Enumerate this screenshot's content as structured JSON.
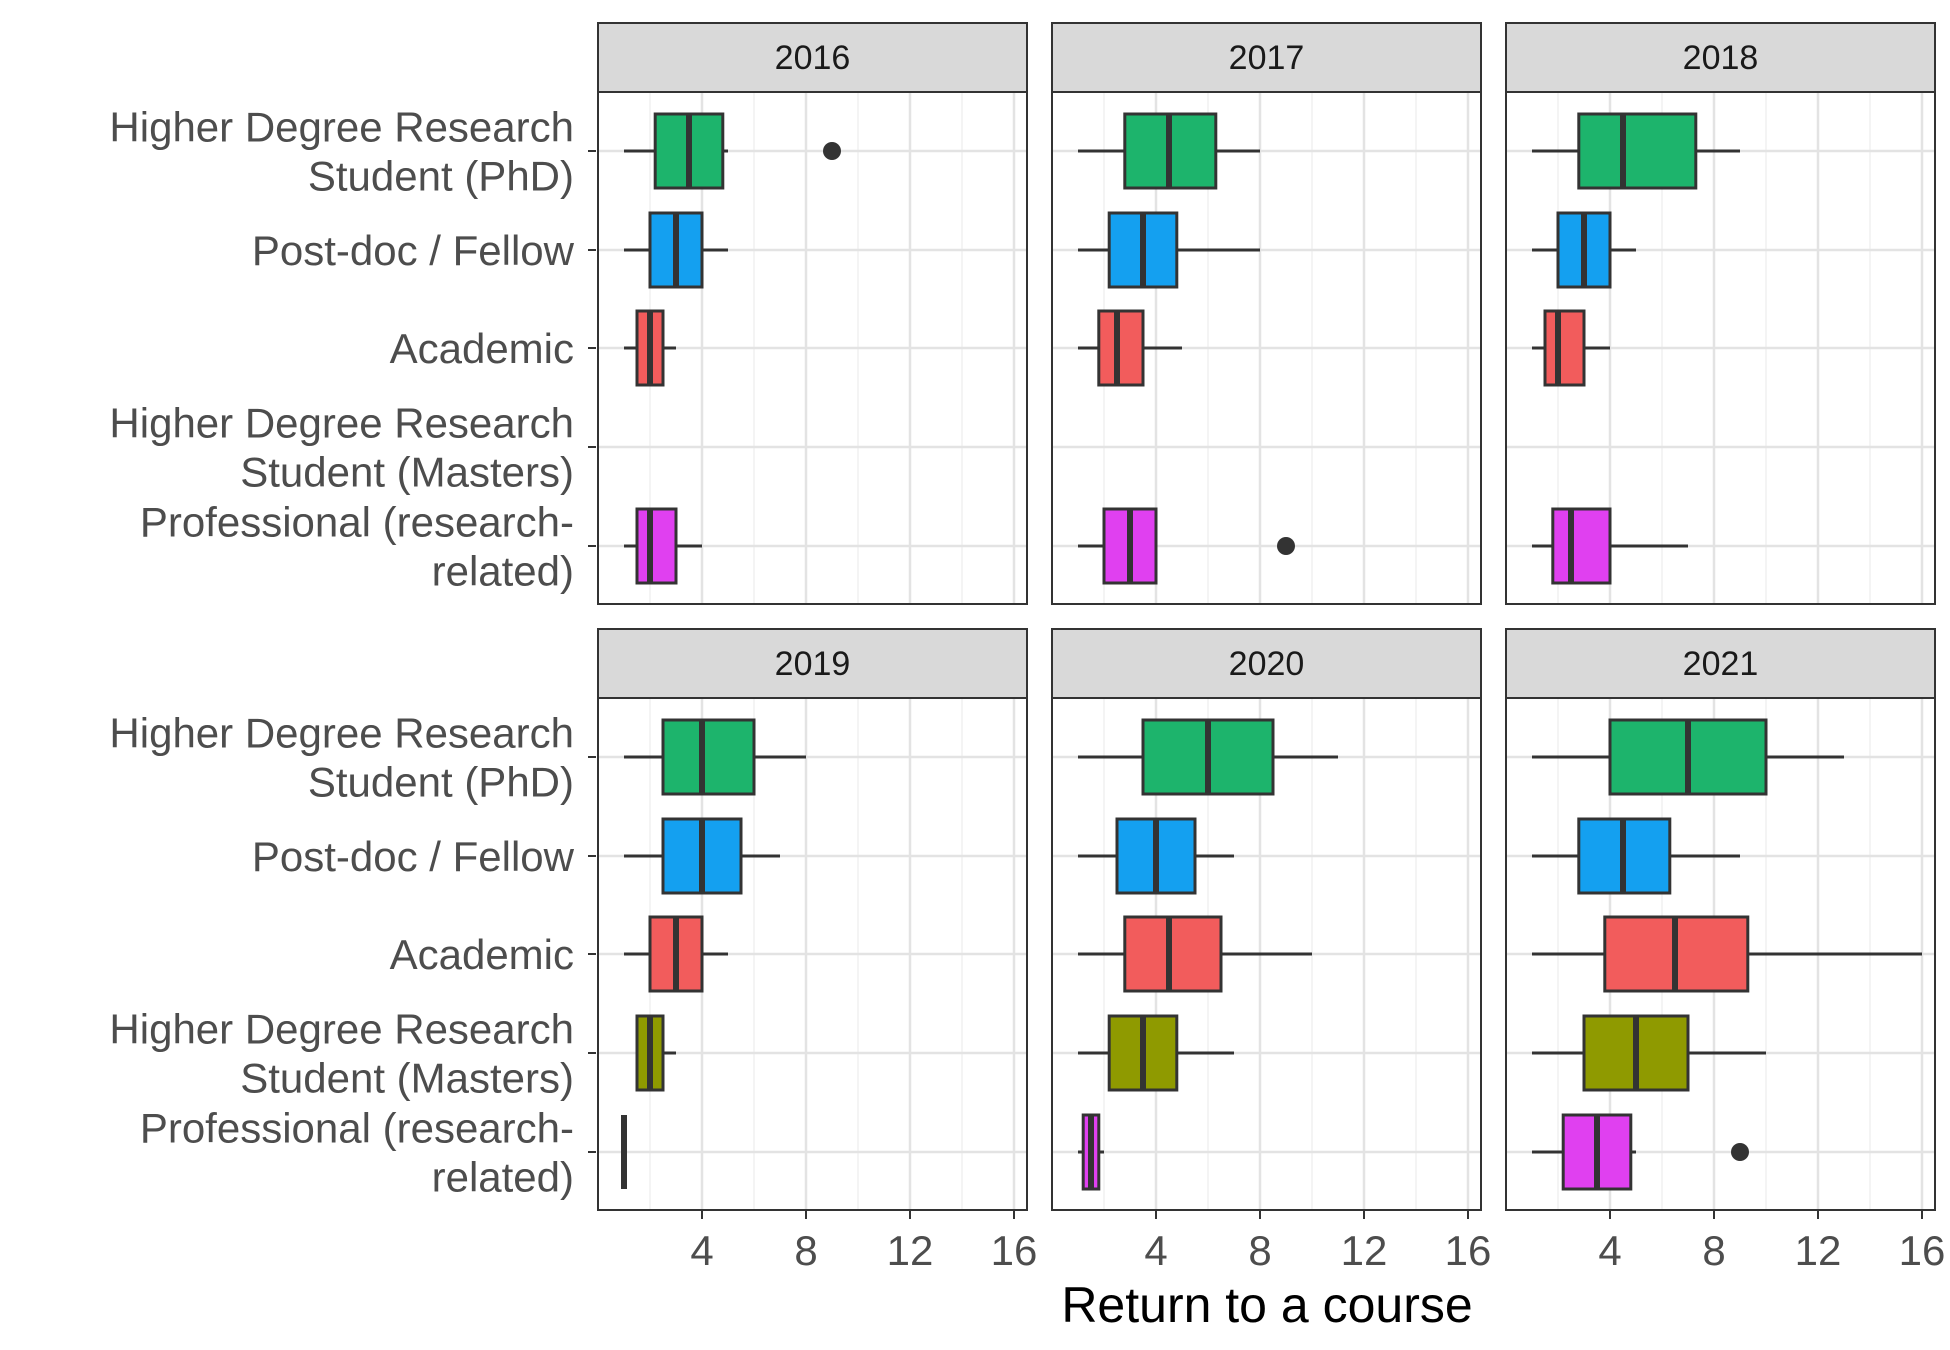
{
  "chart_data": {
    "type": "boxplot",
    "xlabel": "Return to a course",
    "ylabel": "",
    "xlim": [
      0,
      16.5
    ],
    "x_ticks": [
      4,
      8,
      12,
      16
    ],
    "x_tick_labels": [
      "4",
      "8",
      "12",
      "16"
    ],
    "grid": true,
    "categories": [
      "Higher Degree Research\nStudent (PhD)",
      "Post-doc / Fellow",
      "Academic",
      "Higher Degree Research\nStudent (Masters)",
      "Professional (research-\nrelated)"
    ],
    "colors": {
      "Higher Degree Research\nStudent (PhD)": "#1db46c",
      "Post-doc / Fellow": "#14a0f0",
      "Academic": "#f25c5c",
      "Higher Degree Research\nStudent (Masters)": "#8f9a00",
      "Professional (research-\nrelated)": "#e040f0"
    },
    "panels": [
      {
        "label": "2016",
        "boxes": [
          {
            "category": 0,
            "whisker_low": 1,
            "q1": 2.2,
            "median": 3.5,
            "q3": 4.8,
            "whisker_high": 5,
            "outliers": [
              9
            ]
          },
          {
            "category": 1,
            "whisker_low": 1,
            "q1": 2,
            "median": 3,
            "q3": 4,
            "whisker_high": 5,
            "outliers": []
          },
          {
            "category": 2,
            "whisker_low": 1,
            "q1": 1.5,
            "median": 2,
            "q3": 2.5,
            "whisker_high": 3,
            "outliers": []
          },
          {
            "category": 4,
            "whisker_low": 1,
            "q1": 1.5,
            "median": 2,
            "q3": 3,
            "whisker_high": 4,
            "outliers": []
          }
        ]
      },
      {
        "label": "2017",
        "boxes": [
          {
            "category": 0,
            "whisker_low": 1,
            "q1": 2.8,
            "median": 4.5,
            "q3": 6.3,
            "whisker_high": 8,
            "outliers": []
          },
          {
            "category": 1,
            "whisker_low": 1,
            "q1": 2.2,
            "median": 3.5,
            "q3": 4.8,
            "whisker_high": 8,
            "outliers": []
          },
          {
            "category": 2,
            "whisker_low": 1,
            "q1": 1.8,
            "median": 2.5,
            "q3": 3.5,
            "whisker_high": 5,
            "outliers": []
          },
          {
            "category": 4,
            "whisker_low": 1,
            "q1": 2,
            "median": 3,
            "q3": 4,
            "whisker_high": 4,
            "outliers": [
              9
            ]
          }
        ]
      },
      {
        "label": "2018",
        "boxes": [
          {
            "category": 0,
            "whisker_low": 1,
            "q1": 2.8,
            "median": 4.5,
            "q3": 7.3,
            "whisker_high": 9,
            "outliers": []
          },
          {
            "category": 1,
            "whisker_low": 1,
            "q1": 2,
            "median": 3,
            "q3": 4,
            "whisker_high": 5,
            "outliers": []
          },
          {
            "category": 2,
            "whisker_low": 1,
            "q1": 1.5,
            "median": 2,
            "q3": 3,
            "whisker_high": 4,
            "outliers": []
          },
          {
            "category": 4,
            "whisker_low": 1,
            "q1": 1.8,
            "median": 2.5,
            "q3": 4,
            "whisker_high": 7,
            "outliers": []
          }
        ]
      },
      {
        "label": "2019",
        "boxes": [
          {
            "category": 0,
            "whisker_low": 1,
            "q1": 2.5,
            "median": 4,
            "q3": 6,
            "whisker_high": 8,
            "outliers": []
          },
          {
            "category": 1,
            "whisker_low": 1,
            "q1": 2.5,
            "median": 4,
            "q3": 5.5,
            "whisker_high": 7,
            "outliers": []
          },
          {
            "category": 2,
            "whisker_low": 1,
            "q1": 2,
            "median": 3,
            "q3": 4,
            "whisker_high": 5,
            "outliers": []
          },
          {
            "category": 3,
            "whisker_low": 1.5,
            "q1": 1.5,
            "median": 2,
            "q3": 2.5,
            "whisker_high": 3,
            "outliers": []
          },
          {
            "category": 4,
            "whisker_low": 1,
            "q1": 1,
            "median": 1,
            "q3": 1,
            "whisker_high": 1,
            "outliers": []
          }
        ]
      },
      {
        "label": "2020",
        "boxes": [
          {
            "category": 0,
            "whisker_low": 1,
            "q1": 3.5,
            "median": 6,
            "q3": 8.5,
            "whisker_high": 11,
            "outliers": []
          },
          {
            "category": 1,
            "whisker_low": 1,
            "q1": 2.5,
            "median": 4,
            "q3": 5.5,
            "whisker_high": 7,
            "outliers": []
          },
          {
            "category": 2,
            "whisker_low": 1,
            "q1": 2.8,
            "median": 4.5,
            "q3": 6.5,
            "whisker_high": 10,
            "outliers": []
          },
          {
            "category": 3,
            "whisker_low": 1,
            "q1": 2.2,
            "median": 3.5,
            "q3": 4.8,
            "whisker_high": 7,
            "outliers": []
          },
          {
            "category": 4,
            "whisker_low": 1,
            "q1": 1.2,
            "median": 1.5,
            "q3": 1.8,
            "whisker_high": 2,
            "outliers": []
          }
        ]
      },
      {
        "label": "2021",
        "boxes": [
          {
            "category": 0,
            "whisker_low": 1,
            "q1": 4,
            "median": 7,
            "q3": 10,
            "whisker_high": 13,
            "outliers": []
          },
          {
            "category": 1,
            "whisker_low": 1,
            "q1": 2.8,
            "median": 4.5,
            "q3": 6.3,
            "whisker_high": 9,
            "outliers": []
          },
          {
            "category": 2,
            "whisker_low": 1,
            "q1": 3.8,
            "median": 6.5,
            "q3": 9.3,
            "whisker_high": 16,
            "outliers": []
          },
          {
            "category": 3,
            "whisker_low": 1,
            "q1": 3,
            "median": 5,
            "q3": 7,
            "whisker_high": 10,
            "outliers": []
          },
          {
            "category": 4,
            "whisker_low": 1,
            "q1": 2.2,
            "median": 3.5,
            "q3": 4.8,
            "whisker_high": 5,
            "outliers": [
              9
            ]
          }
        ]
      }
    ]
  }
}
